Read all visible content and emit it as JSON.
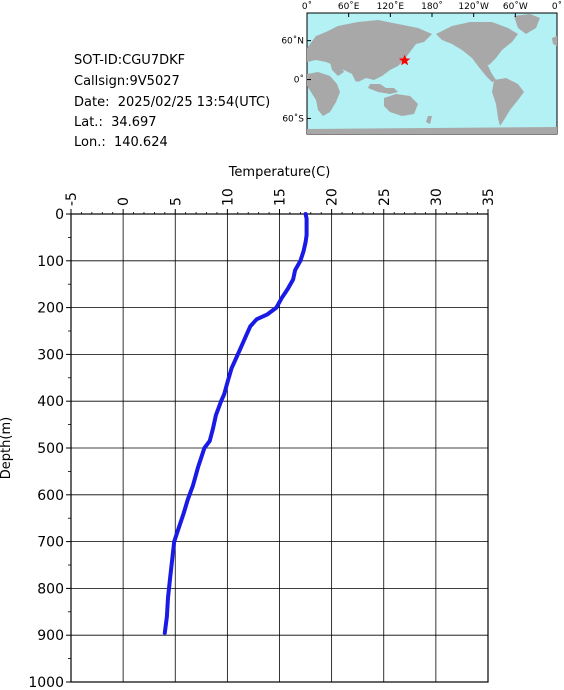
{
  "info": {
    "sot_id": "SOT-ID:CGU7DKF",
    "callsign": "Callsign:9V5027",
    "date": "Date:  2025/02/25 13:54(UTC)",
    "lat": "Lat.:  34.697",
    "lon": "Lon.:  140.624"
  },
  "map": {
    "top_labels": [
      "0˚",
      "60˚E",
      "120˚E",
      "180˚",
      "120˚W",
      "60˚W",
      "0˚"
    ],
    "left_labels": [
      "60˚N",
      "0˚",
      "60˚S"
    ],
    "ocean_color": "#b3f1f4",
    "land_color": "#a8a8a8",
    "marker": {
      "lat": 34.697,
      "lon": 140.624,
      "icon": "red-star-icon",
      "color": "#ff0000"
    }
  },
  "chart_data": {
    "type": "line",
    "xlabel": "Temperature(C)",
    "ylabel": "Depth(m)",
    "xlim": [
      -5,
      35
    ],
    "ylim": [
      0,
      1000
    ],
    "x_ticks": [
      "-5",
      "0",
      "5",
      "10",
      "15",
      "20",
      "25",
      "30",
      "35"
    ],
    "y_ticks": [
      "0",
      "100",
      "200",
      "300",
      "400",
      "500",
      "600",
      "700",
      "800",
      "900",
      "1000"
    ],
    "y_inverted": true,
    "grid": true,
    "line_color": "#1a1ae6",
    "series": [
      {
        "depth": [
          0,
          10,
          25,
          45,
          60,
          80,
          100,
          120,
          140,
          160,
          180,
          200,
          215,
          225,
          240,
          260,
          280,
          300,
          330,
          360,
          385,
          400,
          430,
          460,
          485,
          500,
          540,
          580,
          610,
          640,
          680,
          700,
          740,
          780,
          820,
          860,
          895
        ],
        "temperature": [
          17.5,
          17.6,
          17.6,
          17.6,
          17.5,
          17.3,
          17.0,
          16.5,
          16.3,
          15.8,
          15.2,
          14.7,
          13.8,
          12.8,
          12.2,
          11.8,
          11.4,
          11.0,
          10.4,
          10.0,
          9.7,
          9.4,
          8.9,
          8.6,
          8.3,
          7.8,
          7.2,
          6.7,
          6.2,
          5.8,
          5.2,
          4.9,
          4.7,
          4.5,
          4.3,
          4.2,
          4.0
        ]
      }
    ]
  }
}
